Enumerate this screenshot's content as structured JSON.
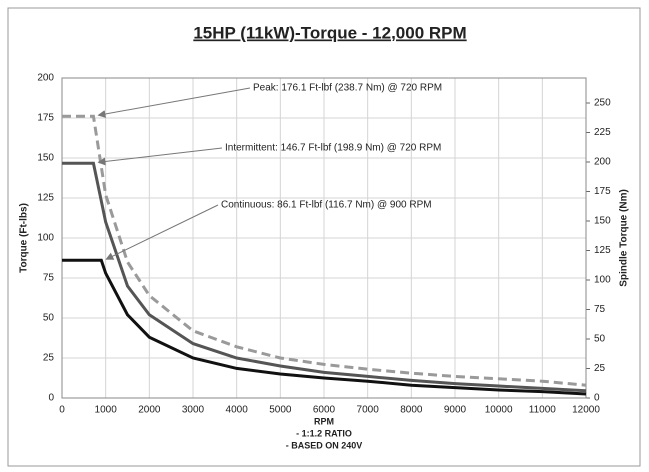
{
  "chart_data": {
    "type": "line",
    "title": "15HP (11kW)-Torque - 12,000 RPM",
    "xlabel": [
      "RPM",
      "- 1:1.2 RATIO",
      "- BASED ON 240V"
    ],
    "ylabel": "Torque (Ft-lbs)",
    "y2label": "Spindle Torque (Nm)",
    "xlim": [
      0,
      12000
    ],
    "xticks": [
      0,
      1000,
      2000,
      3000,
      4000,
      5000,
      6000,
      7000,
      8000,
      9000,
      10000,
      11000,
      12000
    ],
    "ylim": [
      0,
      200
    ],
    "yticks": [
      0,
      25,
      50,
      75,
      100,
      125,
      150,
      175,
      200
    ],
    "y2lim": [
      0,
      271.2
    ],
    "y2ticks": [
      0,
      25,
      50,
      75,
      100,
      125,
      150,
      175,
      200,
      225,
      250
    ],
    "grid": true,
    "series": [
      {
        "name": "Peak",
        "color": "#9a9a9a",
        "dashed": true,
        "x": [
          0,
          720,
          1000,
          1500,
          2000,
          3000,
          4000,
          5000,
          6000,
          7000,
          8000,
          9000,
          10000,
          11000,
          12000
        ],
        "values": [
          176.1,
          176.1,
          127,
          85,
          64,
          42,
          32,
          25,
          21,
          18,
          15.5,
          13.5,
          12,
          10.5,
          8
        ]
      },
      {
        "name": "Intermittent",
        "color": "#555555",
        "dashed": false,
        "x": [
          0,
          720,
          1000,
          1500,
          2000,
          3000,
          4000,
          5000,
          6000,
          7000,
          8000,
          9000,
          10000,
          11000,
          12000
        ],
        "values": [
          146.7,
          146.7,
          110,
          70,
          52,
          34,
          25,
          20,
          16,
          13.5,
          11,
          9,
          7.5,
          6,
          4.5
        ]
      },
      {
        "name": "Continuous",
        "color": "#111111",
        "dashed": false,
        "x": [
          0,
          900,
          1000,
          1500,
          2000,
          3000,
          4000,
          5000,
          6000,
          7000,
          8000,
          9000,
          10000,
          11000,
          12000
        ],
        "values": [
          86.1,
          86.1,
          78,
          52,
          38,
          25,
          18.5,
          15,
          12.5,
          10.5,
          8,
          6.5,
          5,
          4,
          2.5
        ]
      }
    ],
    "annotations": [
      {
        "text": "Peak: 176.1 Ft-lbf (238.7 Nm) @ 720 RPM",
        "series": 0
      },
      {
        "text": "Intermittent: 146.7 Ft-lbf (198.9 Nm) @ 720 RPM",
        "series": 1
      },
      {
        "text": "Continuous: 86.1 Ft-lbf (116.7 Nm) @ 900 RPM",
        "series": 2
      }
    ]
  }
}
